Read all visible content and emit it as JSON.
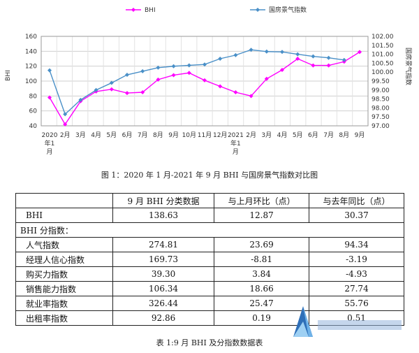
{
  "chart_data": {
    "type": "line",
    "categories": [
      [
        "2020",
        "年1",
        "月"
      ],
      [
        "2月"
      ],
      [
        "3月"
      ],
      [
        "4月"
      ],
      [
        "5月"
      ],
      [
        "6月"
      ],
      [
        "7月"
      ],
      [
        "8月"
      ],
      [
        "9月"
      ],
      [
        "10月"
      ],
      [
        "11月"
      ],
      [
        "12月"
      ],
      [
        "2021",
        "年1",
        "月"
      ],
      [
        "2月"
      ],
      [
        "3月"
      ],
      [
        "4月"
      ],
      [
        "5月"
      ],
      [
        "6月"
      ],
      [
        "7月"
      ],
      [
        "8月"
      ],
      [
        "9月"
      ]
    ],
    "series": [
      {
        "name": "BHI",
        "axis": "left",
        "color": "#ff00ff",
        "marker": "diamond",
        "values": [
          78,
          42,
          73,
          86,
          89,
          84,
          85,
          102,
          108,
          111,
          101,
          93,
          85,
          80,
          103,
          115,
          130,
          121,
          121,
          126,
          139
        ]
      },
      {
        "name": "国房景气指数",
        "axis": "right",
        "color": "#4a90c8",
        "marker": "diamond",
        "values": [
          100.1,
          97.65,
          98.45,
          99.0,
          99.4,
          99.85,
          100.05,
          100.25,
          100.33,
          100.38,
          100.43,
          100.75,
          100.95,
          101.25,
          101.15,
          101.13,
          101.0,
          100.88,
          100.8,
          100.68,
          null
        ]
      }
    ],
    "y_left": {
      "label": "BHI",
      "range": [
        40,
        160
      ],
      "ticks": [
        "40",
        "60",
        "80",
        "100",
        "120",
        "140",
        "160"
      ]
    },
    "y_right": {
      "label": "国房景气指数",
      "range": [
        97.0,
        102.0
      ],
      "ticks": [
        "97.00",
        "97.50",
        "98.00",
        "98.50",
        "99.00",
        "99.50",
        "100.00",
        "100.50",
        "101.00",
        "101.50",
        "102.00"
      ]
    },
    "grid": true,
    "legend": "top"
  },
  "figure_caption": "图 1：2020 年 1 月-2021 年 9 月 BHI 与国房景气指数对比图",
  "table": {
    "headers": [
      "",
      "9 月 BHI 分类数据",
      "与上月环比（点）",
      "与去年同比（点）"
    ],
    "rows": [
      {
        "label": "BHI",
        "values": [
          "138.63",
          "12.87",
          "30.37"
        ]
      },
      {
        "label": "BHI 分指数：",
        "values": []
      },
      {
        "label": "人气指数",
        "values": [
          "274.81",
          "23.69",
          "94.34"
        ]
      },
      {
        "label": "经理人信心指数",
        "values": [
          "169.73",
          "-8.81",
          "-3.19"
        ]
      },
      {
        "label": "购买力指数",
        "values": [
          "39.30",
          "3.84",
          "-4.93"
        ]
      },
      {
        "label": "销售能力指数",
        "values": [
          "106.34",
          "18.66",
          "27.74"
        ]
      },
      {
        "label": "就业率指数",
        "values": [
          "326.44",
          "25.47",
          "55.76"
        ]
      },
      {
        "label": "出租率指数",
        "values": [
          "92.86",
          "0.19",
          "0.51"
        ]
      }
    ]
  },
  "table_caption": "表 1:9 月 BHI 及分指数数据表"
}
